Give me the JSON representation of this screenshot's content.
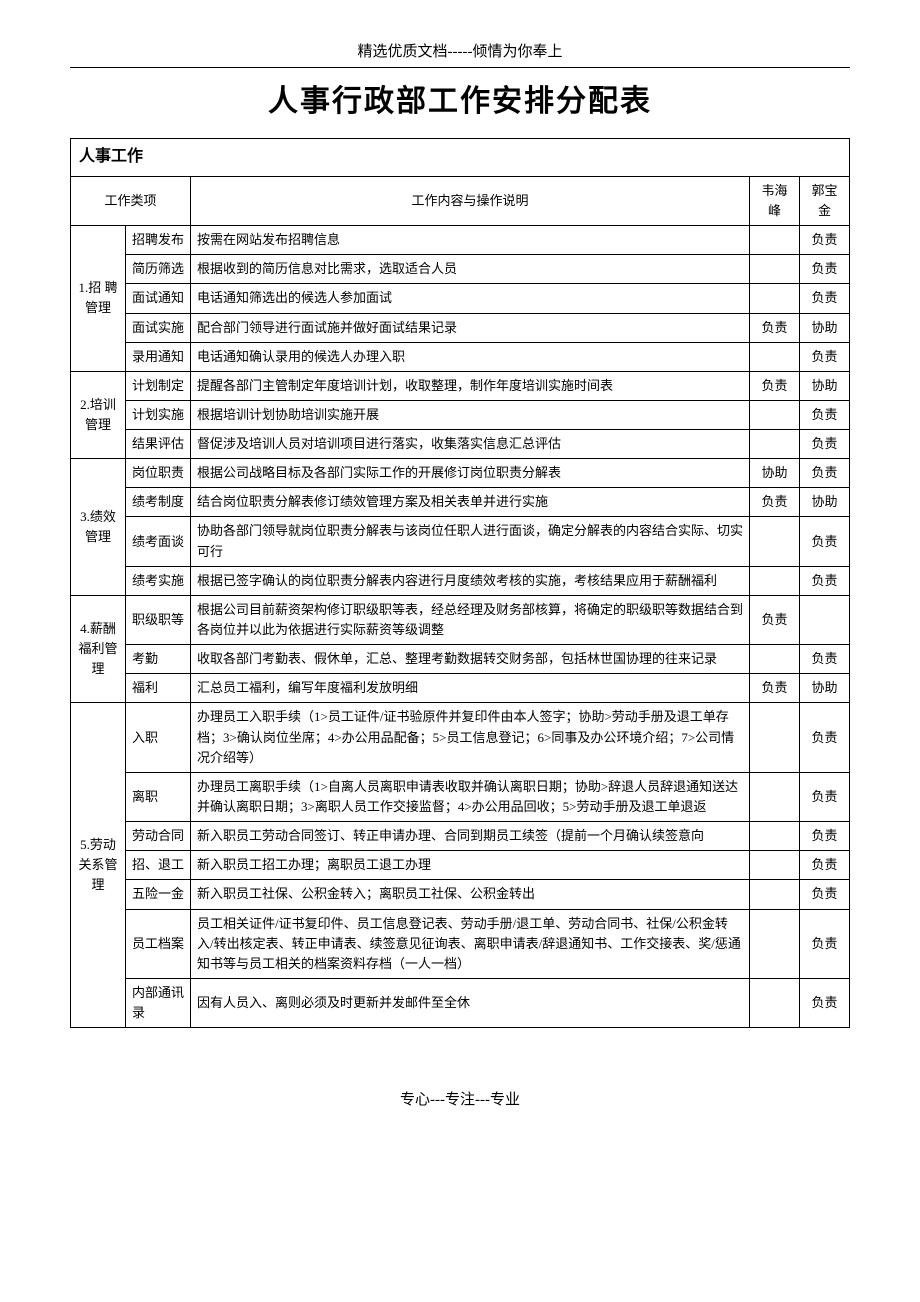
{
  "header": "精选优质文档-----倾情为你奉上",
  "title": "人事行政部工作安排分配表",
  "section_title": "人事工作",
  "columns": {
    "category": "工作类项",
    "desc": "工作内容与操作说明",
    "owner1": "韦海峰",
    "owner2": "郭宝金"
  },
  "categories": [
    {
      "name": "1.招 聘管理",
      "rows": [
        {
          "task": "招聘发布",
          "desc": "按需在网站发布招聘信息",
          "o1": "",
          "o2": "负责"
        },
        {
          "task": "简历筛选",
          "desc": "根据收到的简历信息对比需求，选取适合人员",
          "o1": "",
          "o2": "负责"
        },
        {
          "task": "面试通知",
          "desc": "电话通知筛选出的候选人参加面试",
          "o1": "",
          "o2": "负责"
        },
        {
          "task": "面试实施",
          "desc": "配合部门领导进行面试施并做好面试结果记录",
          "o1": "负责",
          "o2": "协助"
        },
        {
          "task": "录用通知",
          "desc": "电话通知确认录用的候选人办理入职",
          "o1": "",
          "o2": "负责"
        }
      ]
    },
    {
      "name": "2.培训管理",
      "rows": [
        {
          "task": "计划制定",
          "desc": "提醒各部门主管制定年度培训计划，收取整理，制作年度培训实施时间表",
          "o1": "负责",
          "o2": "协助"
        },
        {
          "task": "计划实施",
          "desc": "根据培训计划协助培训实施开展",
          "o1": "",
          "o2": "负责"
        },
        {
          "task": "结果评估",
          "desc": "督促涉及培训人员对培训项目进行落实，收集落实信息汇总评估",
          "o1": "",
          "o2": "负责"
        }
      ]
    },
    {
      "name": "3.绩效管理",
      "rows": [
        {
          "task": "岗位职责",
          "desc": "根据公司战略目标及各部门实际工作的开展修订岗位职责分解表",
          "o1": "协助",
          "o2": "负责"
        },
        {
          "task": "绩考制度",
          "desc": "结合岗位职责分解表修订绩效管理方案及相关表单并进行实施",
          "o1": "负责",
          "o2": "协助"
        },
        {
          "task": "绩考面谈",
          "desc": "协助各部门领导就岗位职责分解表与该岗位任职人进行面谈，确定分解表的内容结合实际、切实可行",
          "o1": "",
          "o2": "负责"
        },
        {
          "task": "绩考实施",
          "desc": "根据已签字确认的岗位职责分解表内容进行月度绩效考核的实施，考核结果应用于薪酬福利",
          "o1": "",
          "o2": "负责"
        }
      ]
    },
    {
      "name": "4.薪酬福利管理",
      "rows": [
        {
          "task": "职级职等",
          "desc": "根据公司目前薪资架构修订职级职等表，经总经理及财务部核算，将确定的职级职等数据结合到各岗位并以此为依据进行实际薪资等级调整",
          "o1": "负责",
          "o2": ""
        },
        {
          "task": "考勤",
          "desc": "收取各部门考勤表、假休单，汇总、整理考勤数据转交财务部，包括林世国协理的往来记录",
          "o1": "",
          "o2": "负责"
        },
        {
          "task": "福利",
          "desc": "汇总员工福利，编写年度福利发放明细",
          "o1": "负责",
          "o2": "协助"
        }
      ]
    },
    {
      "name": "5.劳动关系管理",
      "rows": [
        {
          "task": "入职",
          "desc": "办理员工入职手续（1>员工证件/证书验原件并复印件由本人签字；协助>劳动手册及退工单存档；3>确认岗位坐席；4>办公用品配备；5>员工信息登记；6>同事及办公环境介绍；7>公司情况介绍等）",
          "o1": "",
          "o2": "负责"
        },
        {
          "task": "离职",
          "desc": "办理员工离职手续（1>自离人员离职申请表收取并确认离职日期；协助>辞退人员辞退通知送达并确认离职日期；3>离职人员工作交接监督；4>办公用品回收；5>劳动手册及退工单退返",
          "o1": "",
          "o2": "负责"
        },
        {
          "task": "劳动合同",
          "desc": "新入职员工劳动合同签订、转正申请办理、合同到期员工续签（提前一个月确认续签意向",
          "o1": "",
          "o2": "负责"
        },
        {
          "task": "招、退工",
          "desc": "新入职员工招工办理；离职员工退工办理",
          "o1": "",
          "o2": "负责"
        },
        {
          "task": "五险一金",
          "desc": "新入职员工社保、公积金转入；离职员工社保、公积金转出",
          "o1": "",
          "o2": "负责"
        },
        {
          "task": "员工档案",
          "desc": "员工相关证件/证书复印件、员工信息登记表、劳动手册/退工单、劳动合同书、社保/公积金转入/转出核定表、转正申请表、续签意见征询表、离职申请表/辞退通知书、工作交接表、奖/惩通知书等与员工相关的档案资料存档（一人一档）",
          "o1": "",
          "o2": "负责"
        },
        {
          "task": "内部通讯录",
          "desc": "因有人员入、离则必须及时更新并发邮件至全休",
          "o1": "",
          "o2": "负责"
        }
      ]
    }
  ],
  "footer": "专心---专注---专业"
}
